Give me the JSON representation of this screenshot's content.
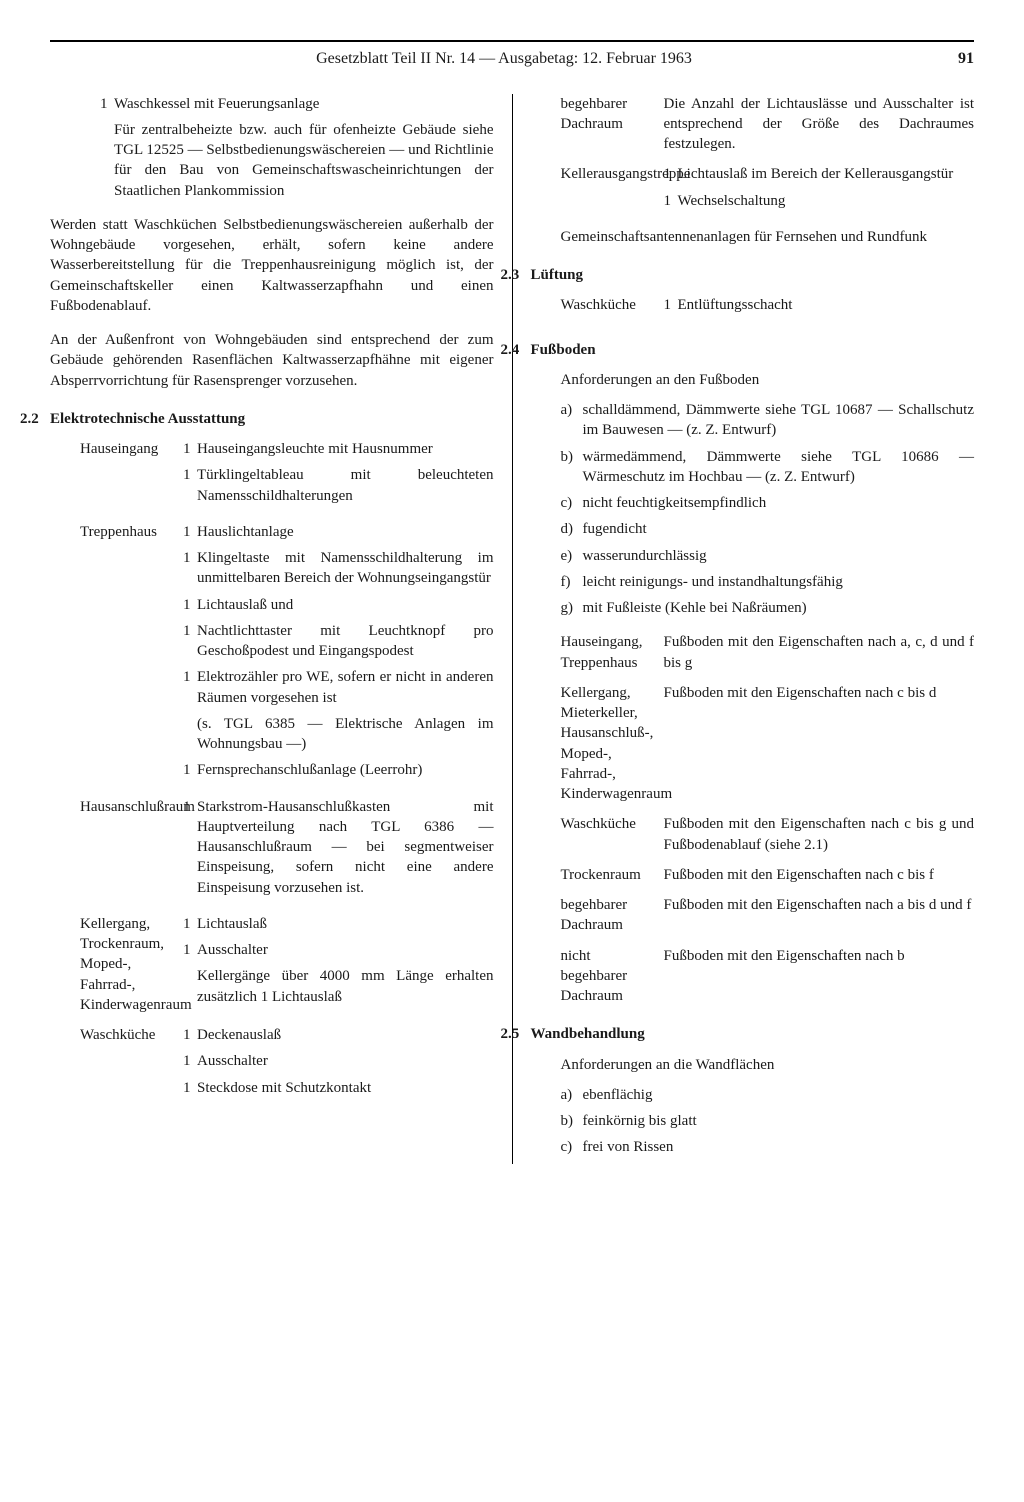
{
  "header": {
    "title": "Gesetzblatt Teil II Nr. 14 — Ausgabetag: 12. Februar 1963",
    "page": "91"
  },
  "left": {
    "top_item": {
      "n": "1",
      "text": "Waschkessel mit Feuerungsanlage",
      "note": "Für zentralbeheizte bzw. auch für ofenheizte Gebäude siehe TGL 12525 — Selbstbedienungswäschereien — und Richtlinie für den Bau von Gemeinschaftswascheinrichtungen der Staatlichen Plankommission"
    },
    "para1": "Werden statt Waschküchen Selbstbedienungswäschereien außerhalb der Wohngebäude vorgesehen, erhält, sofern keine andere Wasserbereitstellung für die Treppenhausreinigung möglich ist, der Gemeinschaftskeller einen Kaltwasserzapfhahn und einen Fußbodenablauf.",
    "para2": "An der Außenfront von Wohngebäuden sind entsprechend der zum Gebäude gehörenden Rasenflächen Kaltwasserzapfhähne mit eigener Absperrvorrichtung für Rasensprenger vorzusehen.",
    "s22": {
      "num": "2.2",
      "title": "Elektrotechnische Ausstattung",
      "rows": [
        {
          "label": "Hauseingang",
          "items": [
            {
              "n": "1",
              "t": "Hauseingangsleuchte mit Hausnummer"
            },
            {
              "n": "1",
              "t": "Türklingeltableau mit beleuchteten Namensschildhalterungen"
            }
          ]
        },
        {
          "label": "Treppenhaus",
          "items": [
            {
              "n": "1",
              "t": "Hauslichtanlage"
            },
            {
              "n": "1",
              "t": "Klingeltaste mit Namensschildhalterung im unmittelbaren Bereich der Wohnungseingangstür"
            },
            {
              "n": "1",
              "t": "Lichtauslaß und"
            },
            {
              "n": "1",
              "t": "Nachtlichttaster mit Leuchtknopf pro Geschoßpodest und Eingangspodest"
            },
            {
              "n": "1",
              "t": "Elektrozähler pro WE, sofern er nicht in anderen Räumen vorgesehen ist"
            },
            {
              "n": "",
              "t": "(s. TGL 6385 — Elektrische Anlagen im Wohnungsbau —)"
            },
            {
              "n": "1",
              "t": "Fernsprechanschlußanlage (Leerrohr)"
            }
          ]
        },
        {
          "label": "Hausanschlußraum",
          "items": [
            {
              "n": "1",
              "t": "Starkstrom-Hausanschlußkasten mit Hauptverteilung nach TGL 6386 — Hausanschlußraum — bei segmentweiser Einspeisung, sofern nicht eine andere Einspeisung vorzusehen ist."
            }
          ]
        },
        {
          "label": "Kellergang, Trockenraum, Moped-, Fahrrad-, Kinderwagenraum",
          "items": [
            {
              "n": "1",
              "t": "Lichtauslaß"
            },
            {
              "n": "1",
              "t": "Ausschalter"
            },
            {
              "n": "",
              "t": "Kellergänge über 4000 mm Länge erhalten zusätzlich 1 Lichtauslaß"
            }
          ]
        },
        {
          "label": "Waschküche",
          "items": [
            {
              "n": "1",
              "t": "Deckenauslaß"
            },
            {
              "n": "1",
              "t": "Ausschalter"
            },
            {
              "n": "1",
              "t": "Steckdose mit Schutzkontakt"
            }
          ]
        }
      ]
    }
  },
  "right": {
    "top_rows": [
      {
        "label": "begehbarer Dachraum",
        "text": "Die Anzahl der Lichtauslässe und Ausschalter ist entsprechend der Größe des Dachraumes festzulegen."
      },
      {
        "label": "Kellerausgangstreppe",
        "items": [
          {
            "n": "1",
            "t": "Lichtauslaß im Bereich der Kellerausgangstür"
          },
          {
            "n": "1",
            "t": "Wechselschaltung"
          }
        ]
      }
    ],
    "antenna": "Gemeinschaftsantennenanlagen für Fernsehen und Rundfunk",
    "s23": {
      "num": "2.3",
      "title": "Lüftung",
      "rows": [
        {
          "label": "Waschküche",
          "items": [
            {
              "n": "1",
              "t": "Entlüftungsschacht"
            }
          ]
        }
      ]
    },
    "s24": {
      "num": "2.4",
      "title": "Fußboden",
      "intro": "Anforderungen an den Fußboden",
      "list": [
        {
          "l": "a)",
          "t": "schalldämmend, Dämmwerte siehe TGL 10687 — Schallschutz im Bauwesen — (z. Z. Entwurf)"
        },
        {
          "l": "b)",
          "t": "wärmedämmend, Dämmwerte siehe TGL 10686 — Wärmeschutz im Hochbau — (z. Z. Entwurf)"
        },
        {
          "l": "c)",
          "t": "nicht feuchtigkeitsempfindlich"
        },
        {
          "l": "d)",
          "t": "fugendicht"
        },
        {
          "l": "e)",
          "t": "wasserundurchlässig"
        },
        {
          "l": "f)",
          "t": "leicht reinigungs- und instandhaltungsfähig"
        },
        {
          "l": "g)",
          "t": "mit Fußleiste (Kehle bei Naßräumen)"
        }
      ],
      "rows": [
        {
          "label": "Hauseingang, Treppenhaus",
          "text": "Fußboden mit den Eigenschaften nach a, c, d und f bis g"
        },
        {
          "label": "Kellergang, Mieterkeller, Hausanschluß-, Moped-, Fahrrad-, Kinderwagenraum",
          "text": "Fußboden mit den Eigenschaften nach c bis d"
        },
        {
          "label": "Waschküche",
          "text": "Fußboden mit den Eigenschaften nach c bis g und Fußbodenablauf (siehe 2.1)"
        },
        {
          "label": "Trockenraum",
          "text": "Fußboden mit den Eigenschaften nach c bis f"
        },
        {
          "label": "begehbarer Dachraum",
          "text": "Fußboden mit den Eigenschaften nach a bis d und f"
        },
        {
          "label": "nicht begehbarer Dachraum",
          "text": "Fußboden mit den Eigenschaften nach b"
        }
      ]
    },
    "s25": {
      "num": "2.5",
      "title": "Wandbehandlung",
      "intro": "Anforderungen an die Wandflächen",
      "list": [
        {
          "l": "a)",
          "t": "ebenflächig"
        },
        {
          "l": "b)",
          "t": "feinkörnig bis glatt"
        },
        {
          "l": "c)",
          "t": "frei von Rissen"
        }
      ]
    }
  }
}
